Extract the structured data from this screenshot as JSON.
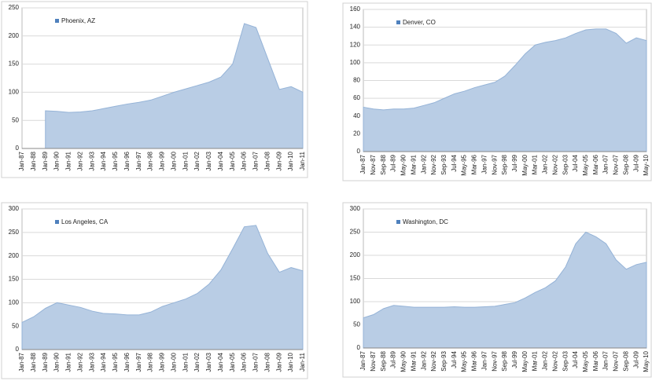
{
  "chart_data": [
    {
      "type": "area",
      "categories": [
        "Jan-87",
        "Jan-88",
        "Jan-89",
        "Jan-90",
        "Jan-91",
        "Jan-92",
        "Jan-93",
        "Jan-94",
        "Jan-95",
        "Jan-96",
        "Jan-97",
        "Jan-98",
        "Jan-99",
        "Jan-00",
        "Jan-01",
        "Jan-02",
        "Jan-03",
        "Jan-04",
        "Jan-05",
        "Jan-06",
        "Jan-07",
        "Jan-08",
        "Jan-09",
        "Jan-10",
        "Jan-11"
      ],
      "series": [
        {
          "name": "Phoenix, AZ",
          "color": "#b9cde5",
          "values": [
            null,
            null,
            67,
            66,
            64,
            65,
            67,
            71,
            75,
            79,
            82,
            86,
            93,
            100,
            106,
            112,
            118,
            127,
            150,
            222,
            215,
            160,
            105,
            110,
            100
          ]
        }
      ],
      "ylim": [
        0,
        250
      ],
      "yticks": [
        0,
        50,
        100,
        150,
        200,
        250
      ],
      "grid": true,
      "legend": "upper left"
    },
    {
      "type": "area",
      "categories": [
        "Jan-87",
        "Nov-87",
        "Sep-88",
        "Jul-89",
        "May-90",
        "Mar-91",
        "Jan-92",
        "Nov-92",
        "Sep-93",
        "Jul-94",
        "May-95",
        "Mar-96",
        "Jan-97",
        "Nov-97",
        "Sep-98",
        "Jul-99",
        "May-00",
        "Mar-01",
        "Jan-02",
        "Nov-02",
        "Sep-03",
        "Jul-04",
        "May-05",
        "Mar-06",
        "Jan-07",
        "Nov-07",
        "Sep-08",
        "Jul-09",
        "May-10"
      ],
      "series": [
        {
          "name": "Denver, CO",
          "color": "#b9cde5",
          "values": [
            50,
            48,
            47,
            48,
            48,
            49,
            52,
            55,
            60,
            65,
            68,
            72,
            75,
            78,
            85,
            97,
            110,
            120,
            123,
            125,
            128,
            133,
            137,
            138,
            138,
            133,
            122,
            128,
            125
          ]
        }
      ],
      "ylim": [
        0,
        160
      ],
      "yticks": [
        0,
        20,
        40,
        60,
        80,
        100,
        120,
        140,
        160
      ],
      "grid": true,
      "legend": "upper left"
    },
    {
      "type": "area",
      "categories": [
        "Jan-87",
        "Jan-88",
        "Jan-89",
        "Jan-90",
        "Jan-91",
        "Jan-92",
        "Jan-93",
        "Jan-94",
        "Jan-95",
        "Jan-96",
        "Jan-97",
        "Jan-98",
        "Jan-99",
        "Jan-00",
        "Jan-01",
        "Jan-02",
        "Jan-03",
        "Jan-04",
        "Jan-05",
        "Jan-06",
        "Jan-07",
        "Jan-08",
        "Jan-09",
        "Jan-10",
        "Jan-11"
      ],
      "series": [
        {
          "name": "Los Angeles, CA",
          "color": "#b9cde5",
          "values": [
            58,
            70,
            88,
            100,
            95,
            90,
            82,
            77,
            76,
            74,
            74,
            80,
            92,
            100,
            108,
            120,
            140,
            170,
            215,
            262,
            265,
            205,
            165,
            175,
            168
          ]
        }
      ],
      "ylim": [
        0,
        300
      ],
      "yticks": [
        0,
        50,
        100,
        150,
        200,
        250,
        300
      ],
      "grid": true,
      "legend": "upper left"
    },
    {
      "type": "area",
      "categories": [
        "Jan-87",
        "Nov-87",
        "Sep-88",
        "Jul-89",
        "May-90",
        "Mar-91",
        "Jan-92",
        "Nov-92",
        "Sep-93",
        "Jul-94",
        "May-95",
        "Mar-96",
        "Jan-97",
        "Nov-97",
        "Sep-98",
        "Jul-99",
        "May-00",
        "Mar-01",
        "Jan-02",
        "Nov-02",
        "Sep-03",
        "Jul-04",
        "May-05",
        "Mar-06",
        "Jan-07",
        "Nov-07",
        "Sep-08",
        "Jul-09",
        "May-10"
      ],
      "series": [
        {
          "name": "Washington, DC",
          "color": "#b9cde5",
          "values": [
            65,
            72,
            85,
            92,
            90,
            88,
            88,
            88,
            88,
            89,
            88,
            88,
            89,
            90,
            94,
            98,
            108,
            120,
            130,
            145,
            175,
            225,
            250,
            240,
            225,
            190,
            170,
            180,
            185
          ]
        }
      ],
      "ylim": [
        0,
        300
      ],
      "yticks": [
        0,
        50,
        100,
        150,
        200,
        250,
        300
      ],
      "grid": true,
      "legend": "upper left"
    }
  ]
}
